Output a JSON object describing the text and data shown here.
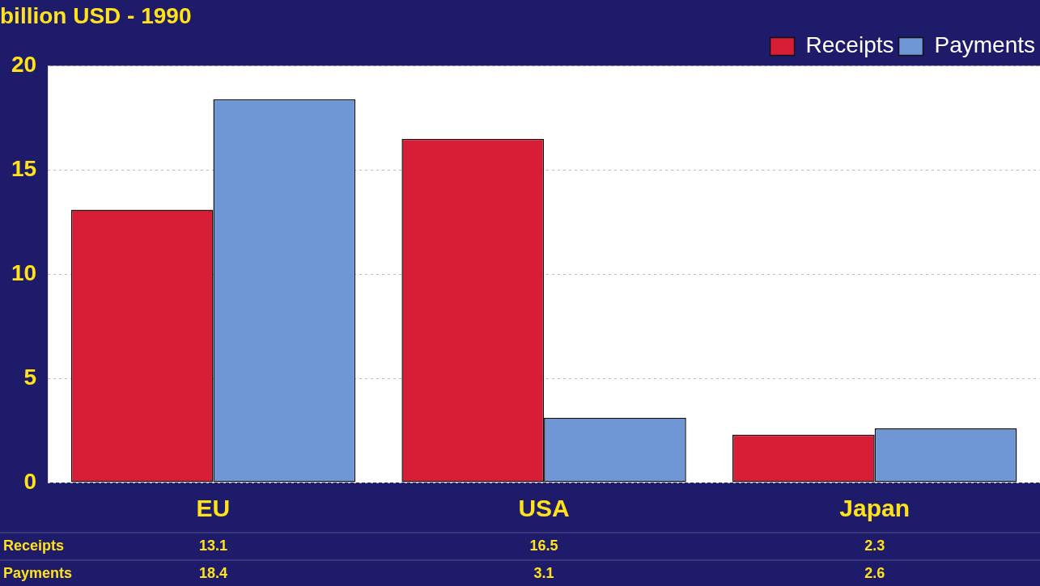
{
  "chart_data": {
    "type": "bar",
    "title": "billion USD - 1990",
    "categories": [
      "EU",
      "USA",
      "Japan"
    ],
    "series": [
      {
        "name": "Receipts",
        "color": "#d81e36",
        "values": [
          13.1,
          16.5,
          2.3
        ]
      },
      {
        "name": "Payments",
        "color": "#6f97d6",
        "values": [
          18.4,
          3.1,
          2.6
        ]
      }
    ],
    "ylim": [
      0,
      20
    ],
    "yticks": [
      0,
      5,
      10,
      15,
      20
    ],
    "grid": "y",
    "legend": "top right",
    "data_labels": true
  }
}
